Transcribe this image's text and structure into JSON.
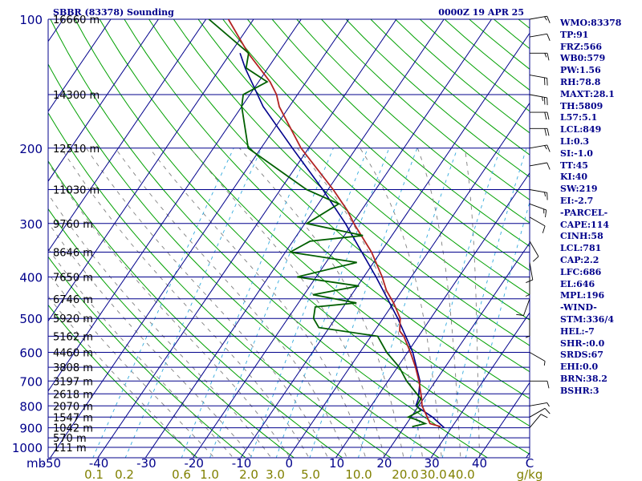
{
  "header": {
    "station": "SBBR (83378) Sounding",
    "time": "0000Z 19 APR 25"
  },
  "chart_data": {
    "type": "skew-t",
    "pressure_labels": [
      100,
      200,
      300,
      400,
      500,
      600,
      700,
      800,
      900,
      1000
    ],
    "pressure_unit_label": "mb",
    "height_labels": [
      {
        "p": 100,
        "text": "16660 m"
      },
      {
        "p": 150,
        "text": "14300 m"
      },
      {
        "p": 200,
        "text": "12510 m"
      },
      {
        "p": 250,
        "text": "11030 m"
      },
      {
        "p": 300,
        "text": "9760 m"
      },
      {
        "p": 350,
        "text": "8646 m"
      },
      {
        "p": 400,
        "text": "7650 m"
      },
      {
        "p": 450,
        "text": "6746 m"
      },
      {
        "p": 500,
        "text": "5920 m"
      },
      {
        "p": 550,
        "text": "5162 m"
      },
      {
        "p": 600,
        "text": "4460 m"
      },
      {
        "p": 650,
        "text": "3808 m"
      },
      {
        "p": 700,
        "text": "3197 m"
      },
      {
        "p": 750,
        "text": "2618 m"
      },
      {
        "p": 800,
        "text": "2070 m"
      },
      {
        "p": 850,
        "text": "1547 m"
      },
      {
        "p": 900,
        "text": "1042 m"
      },
      {
        "p": 950,
        "text": "570 m"
      },
      {
        "p": 1000,
        "text": "111 m"
      }
    ],
    "temp_axis_labels": [
      -50,
      -40,
      -30,
      -20,
      -10,
      0,
      10,
      20,
      30,
      40
    ],
    "temp_axis_unit": "C",
    "mixing_ratio_labels": [
      "0.1",
      "0.2",
      "0.6",
      "1.0",
      "2.0",
      "3.0",
      "5.0",
      "10.0",
      "20.0",
      "30.0",
      "40.0"
    ],
    "mixing_ratio_unit": "g/kg",
    "temperature_profile": [
      {
        "p": 895,
        "t": 27.6
      },
      {
        "p": 880,
        "t": 24.9
      },
      {
        "p": 850,
        "t": 23.4
      },
      {
        "p": 800,
        "t": 20.7
      },
      {
        "p": 770,
        "t": 19.6
      },
      {
        "p": 700,
        "t": 16.5
      },
      {
        "p": 650,
        "t": 13.8
      },
      {
        "p": 600,
        "t": 10.6
      },
      {
        "p": 550,
        "t": 6.9
      },
      {
        "p": 535,
        "t": 5.3
      },
      {
        "p": 500,
        "t": 3.6
      },
      {
        "p": 460,
        "t": 0.0
      },
      {
        "p": 430,
        "t": -3.3
      },
      {
        "p": 400,
        "t": -6.1
      },
      {
        "p": 350,
        "t": -11.9
      },
      {
        "p": 300,
        "t": -19.7
      },
      {
        "p": 280,
        "t": -22.9
      },
      {
        "p": 250,
        "t": -28.9
      },
      {
        "p": 200,
        "t": -41.6
      },
      {
        "p": 160,
        "t": -52.1
      },
      {
        "p": 150,
        "t": -54.4
      },
      {
        "p": 140,
        "t": -57.6
      },
      {
        "p": 120,
        "t": -66.3
      },
      {
        "p": 100,
        "t": -75.3
      }
    ],
    "dewpoint_profile": [
      {
        "p": 895,
        "t": 21.6
      },
      {
        "p": 880,
        "t": 23.9
      },
      {
        "p": 860,
        "t": 21.2
      },
      {
        "p": 850,
        "t": 19.4
      },
      {
        "p": 820,
        "t": 21.1
      },
      {
        "p": 800,
        "t": 19.6
      },
      {
        "p": 770,
        "t": 19.4
      },
      {
        "p": 700,
        "t": 13.9
      },
      {
        "p": 650,
        "t": 10.4
      },
      {
        "p": 600,
        "t": 5.6
      },
      {
        "p": 550,
        "t": 1.4
      },
      {
        "p": 525,
        "t": -12.2
      },
      {
        "p": 500,
        "t": -14.6
      },
      {
        "p": 470,
        "t": -15.9
      },
      {
        "p": 460,
        "t": -7.8
      },
      {
        "p": 440,
        "t": -18.1
      },
      {
        "p": 420,
        "t": -9.7
      },
      {
        "p": 400,
        "t": -24.0
      },
      {
        "p": 370,
        "t": -13.5
      },
      {
        "p": 350,
        "t": -29.0
      },
      {
        "p": 330,
        "t": -26.4
      },
      {
        "p": 320,
        "t": -16.1
      },
      {
        "p": 300,
        "t": -29.6
      },
      {
        "p": 270,
        "t": -25.7
      },
      {
        "p": 250,
        "t": -34.5
      },
      {
        "p": 200,
        "t": -52.7
      },
      {
        "p": 160,
        "t": -60.0
      },
      {
        "p": 150,
        "t": -61.4
      },
      {
        "p": 140,
        "t": -58.2
      },
      {
        "p": 130,
        "t": -64.6
      },
      {
        "p": 120,
        "t": -66.2
      },
      {
        "p": 100,
        "t": -79.4
      }
    ],
    "parcel_profile": [
      {
        "p": 900,
        "t": 28.5
      },
      {
        "p": 850,
        "t": 24.5
      },
      {
        "p": 800,
        "t": 19.4
      },
      {
        "p": 770,
        "t": 18.9
      },
      {
        "p": 700,
        "t": 16.7
      },
      {
        "p": 600,
        "t": 11.1
      },
      {
        "p": 500,
        "t": 3.1
      },
      {
        "p": 400,
        "t": -7.4
      },
      {
        "p": 300,
        "t": -21.5
      },
      {
        "p": 250,
        "t": -31.1
      },
      {
        "p": 200,
        "t": -43.4
      },
      {
        "p": 160,
        "t": -55.5
      },
      {
        "p": 130,
        "t": -64.8
      },
      {
        "p": 120,
        "t": -68.0
      }
    ],
    "wind_barbs": [
      {
        "p": 100,
        "dir": 80,
        "kt": 15
      },
      {
        "p": 110,
        "dir": 80,
        "kt": 10
      },
      {
        "p": 120,
        "dir": 90,
        "kt": 15
      },
      {
        "p": 135,
        "dir": 100,
        "kt": 20
      },
      {
        "p": 150,
        "dir": 100,
        "kt": 25
      },
      {
        "p": 165,
        "dir": 90,
        "kt": 20
      },
      {
        "p": 180,
        "dir": 90,
        "kt": 20
      },
      {
        "p": 200,
        "dir": 80,
        "kt": 15
      },
      {
        "p": 220,
        "dir": 80,
        "kt": 10
      },
      {
        "p": 250,
        "dir": 100,
        "kt": 15
      },
      {
        "p": 270,
        "dir": 110,
        "kt": 15
      },
      {
        "p": 290,
        "dir": 120,
        "kt": 10
      },
      {
        "p": 330,
        "dir": 150,
        "kt": 10
      },
      {
        "p": 370,
        "dir": 170,
        "kt": 10
      },
      {
        "p": 400,
        "dir": 180,
        "kt": 5
      },
      {
        "p": 450,
        "dir": 200,
        "kt": 10
      },
      {
        "p": 500,
        "dir": 180,
        "kt": 5
      },
      {
        "p": 600,
        "dir": 120,
        "kt": 5
      },
      {
        "p": 700,
        "dir": 90,
        "kt": 10
      },
      {
        "p": 800,
        "dir": 80,
        "kt": 5
      },
      {
        "p": 850,
        "dir": 60,
        "kt": 10
      },
      {
        "p": 900,
        "dir": 40,
        "kt": 10
      }
    ],
    "colors": {
      "grid": "#00008b",
      "dry_adiabat": "#00a000",
      "moist_adiabat": "#7f7f7f",
      "mixing_ratio": "#33aadd",
      "temperature": "#b22222",
      "dewpoint": "#005f00",
      "parcel": "#00008b",
      "mixing_ratio_text": "#808000",
      "wind": "#000000"
    }
  },
  "indices": [
    "WMO:83378",
    "TP:91",
    "FRZ:566",
    "WB0:579",
    "PW:1.56",
    "RH:78.8",
    "MAXT:28.1",
    "TH:5809",
    "L57:5.1",
    "LCL:849",
    "LI:0.3",
    "SI:-1.0",
    "TT:45",
    "KI:40",
    "SW:219",
    "EI:-2.7",
    "-PARCEL-",
    "CAPE:114",
    "CINH:58",
    "LCL:781",
    "CAP:2.2",
    "LFC:686",
    "EL:646",
    "MPL:196",
    "-WIND-",
    "STM:336/4",
    "HEL:-7",
    "SHR-:0.0",
    "SRDS:67",
    "EHI:0.0",
    "BRN:38.2",
    "BSHR:3"
  ]
}
